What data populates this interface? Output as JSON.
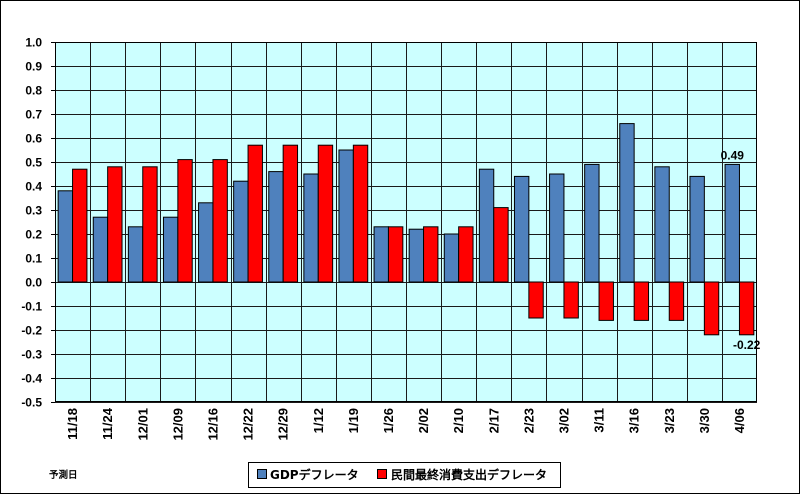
{
  "chart_data": {
    "type": "bar",
    "xlabel": "予測日",
    "categories": [
      "11/18",
      "11/24",
      "12/01",
      "12/09",
      "12/16",
      "12/22",
      "12/29",
      "1/12",
      "1/19",
      "1/26",
      "2/02",
      "2/10",
      "2/17",
      "2/23",
      "3/02",
      "3/11",
      "3/16",
      "3/23",
      "3/30",
      "4/06"
    ],
    "series": [
      {
        "name": "GDPデフレータ",
        "color": "#4F81BD",
        "values": [
          0.38,
          0.27,
          0.23,
          0.27,
          0.33,
          0.42,
          0.46,
          0.45,
          0.55,
          0.23,
          0.22,
          0.2,
          0.47,
          0.44,
          0.45,
          0.49,
          0.66,
          0.48,
          0.44,
          0.49
        ]
      },
      {
        "name": "民間最終消費支出デフレータ",
        "color": "#FF0000",
        "values": [
          0.47,
          0.48,
          0.48,
          0.51,
          0.51,
          0.57,
          0.57,
          0.57,
          0.57,
          0.23,
          0.23,
          0.23,
          0.31,
          -0.15,
          -0.15,
          -0.16,
          -0.16,
          -0.16,
          -0.22,
          -0.22
        ]
      }
    ],
    "ylim": [
      -0.5,
      1.0
    ],
    "yticks": [
      "1.0",
      "0.9",
      "0.8",
      "0.7",
      "0.6",
      "0.5",
      "0.4",
      "0.3",
      "0.2",
      "0.1",
      "0.0",
      "-0.1",
      "-0.2",
      "-0.3",
      "-0.4",
      "-0.5"
    ],
    "data_labels": [
      {
        "series": "GDPデフレータ",
        "category": "4/06",
        "text": "0.49"
      },
      {
        "series": "民間最終消費支出デフレータ",
        "category": "4/06",
        "text": "-0.22"
      }
    ],
    "grid": true,
    "legend_position": "bottom",
    "plot_background": "#CCFFFF"
  }
}
